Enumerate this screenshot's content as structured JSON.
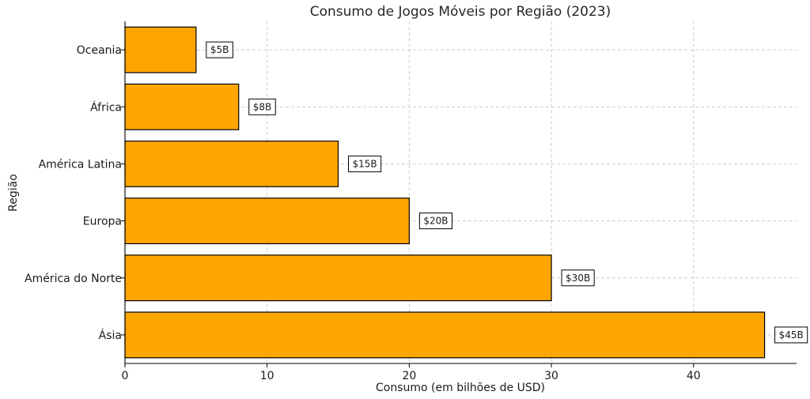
{
  "chart_data": {
    "type": "bar",
    "orientation": "horizontal",
    "title": "Consumo de Jogos Móveis por Região (2023)",
    "xlabel": "Consumo (em bilhões de USD)",
    "ylabel": "Região",
    "categories": [
      "Ásia",
      "América do Norte",
      "Europa",
      "América Latina",
      "África",
      "Oceania"
    ],
    "values": [
      45,
      30,
      20,
      15,
      8,
      5
    ],
    "data_labels": [
      "$45B",
      "$30B",
      "$20B",
      "$15B",
      "$8B",
      "$5B"
    ],
    "xlim": [
      0,
      47.25
    ],
    "xticks": [
      0,
      10,
      20,
      30,
      40
    ],
    "grid": true,
    "bar_color": "#FFA500",
    "edge_color": "#000000"
  }
}
